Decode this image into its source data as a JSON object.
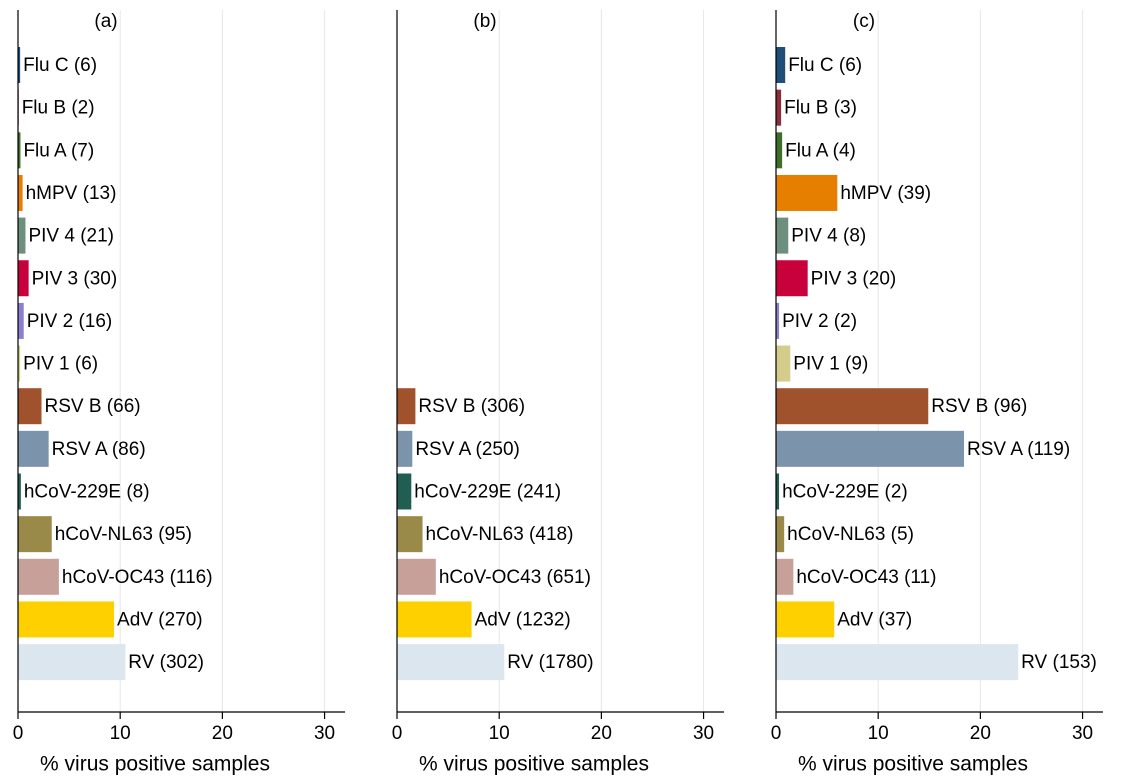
{
  "chart_data": [
    {
      "type": "bar",
      "orientation": "horizontal",
      "title": "(a)",
      "xlabel": "% virus positive samples",
      "categories": [
        "Flu C (6)",
        "Flu B (2)",
        "Flu A (7)",
        "hMPV (13)",
        "PIV 4 (21)",
        "PIV 3 (30)",
        "PIV 2 (16)",
        "PIV 1 (6)",
        "RSV B (66)",
        "RSV A (86)",
        "hCoV-229E (8)",
        "hCoV-NL63 (95)",
        "hCoV-OC43 (116)",
        "AdV (270)",
        "RV (302)"
      ],
      "values": [
        0.21,
        0.07,
        0.24,
        0.45,
        0.73,
        1.04,
        0.56,
        0.21,
        2.3,
        3.0,
        0.28,
        3.3,
        4.0,
        9.4,
        10.5
      ],
      "colors": [
        "#1f4e79",
        "#8b2e3a",
        "#3f6e2a",
        "#e67e00",
        "#6e8e7e",
        "#c8003c",
        "#8c7fd0",
        "#d4cc8a",
        "#a0522d",
        "#7b93ab",
        "#1f5e50",
        "#9a8a4a",
        "#c8a09a",
        "#ffd000",
        "#dce6ee"
      ],
      "xlim": [
        0,
        32
      ],
      "xticks": [
        0,
        10,
        20,
        30
      ],
      "grid": true
    },
    {
      "type": "bar",
      "orientation": "horizontal",
      "title": "(b)",
      "xlabel": "% virus positive samples",
      "categories": [
        null,
        null,
        null,
        null,
        null,
        null,
        null,
        null,
        "RSV B (306)",
        "RSV A (250)",
        "hCoV-229E (241)",
        "hCoV-NL63 (418)",
        "hCoV-OC43 (651)",
        "AdV (1232)",
        "RV (1780)"
      ],
      "values": [
        null,
        null,
        null,
        null,
        null,
        null,
        null,
        null,
        1.8,
        1.5,
        1.4,
        2.5,
        3.8,
        7.3,
        10.5
      ],
      "colors": [
        null,
        null,
        null,
        null,
        null,
        null,
        null,
        null,
        "#a0522d",
        "#7b93ab",
        "#1f5e50",
        "#9a8a4a",
        "#c8a09a",
        "#ffd000",
        "#dce6ee"
      ],
      "xlim": [
        0,
        32
      ],
      "xticks": [
        0,
        10,
        20,
        30
      ],
      "grid": true
    },
    {
      "type": "bar",
      "orientation": "horizontal",
      "title": "(c)",
      "xlabel": "% virus positive samples",
      "categories": [
        "Flu C (6)",
        "Flu B (3)",
        "Flu A (4)",
        "hMPV (39)",
        "PIV 4 (8)",
        "PIV 3 (20)",
        "PIV 2 (2)",
        "PIV 1 (9)",
        "RSV B (96)",
        "RSV A (119)",
        "hCoV-229E (2)",
        "hCoV-NL63 (5)",
        "hCoV-OC43 (11)",
        "AdV (37)",
        "RV (153)"
      ],
      "values": [
        0.9,
        0.5,
        0.6,
        6.0,
        1.2,
        3.1,
        0.3,
        1.4,
        14.9,
        18.4,
        0.3,
        0.8,
        1.7,
        5.7,
        23.7
      ],
      "colors": [
        "#1f4e79",
        "#8b2e3a",
        "#3f6e2a",
        "#e67e00",
        "#6e8e7e",
        "#c8003c",
        "#8c7fd0",
        "#d4cc8a",
        "#a0522d",
        "#7b93ab",
        "#1f5e50",
        "#9a8a4a",
        "#c8a09a",
        "#ffd000",
        "#dce6ee"
      ],
      "xlim": [
        0,
        32
      ],
      "xticks": [
        0,
        10,
        20,
        30
      ],
      "grid": true
    }
  ]
}
